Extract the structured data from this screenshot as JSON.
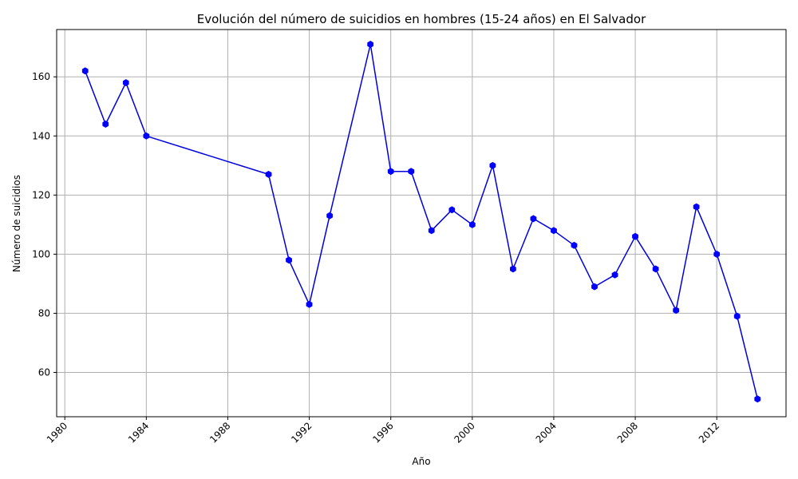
{
  "chart_data": {
    "type": "line",
    "title": "Evolución del número de suicidios en hombres (15-24 años) en El Salvador",
    "xlabel": "Año",
    "ylabel": "Número de suicidios",
    "xlim": [
      1979.6,
      2015.4
    ],
    "ylim": [
      45,
      176
    ],
    "xticks": [
      1980,
      1984,
      1988,
      1992,
      1996,
      2000,
      2004,
      2008,
      2012
    ],
    "yticks": [
      60,
      80,
      100,
      120,
      140,
      160
    ],
    "grid": true,
    "line_color": "#0000dd",
    "marker_color": "#0000ff",
    "series": [
      {
        "x": [
          1981,
          1982,
          1983,
          1984,
          1990,
          1991,
          1992,
          1993,
          1995,
          1996,
          1997,
          1998,
          1999,
          2000,
          2001,
          2002,
          2003,
          2004,
          2005,
          2006,
          2007,
          2008,
          2009,
          2010,
          2011,
          2012,
          2013,
          2014
        ],
        "y": [
          162,
          144,
          158,
          140,
          127,
          98,
          83,
          113,
          171,
          128,
          128,
          108,
          115,
          110,
          130,
          95,
          112,
          108,
          103,
          89,
          93,
          106,
          95,
          81,
          116,
          100,
          79,
          51
        ]
      }
    ]
  }
}
